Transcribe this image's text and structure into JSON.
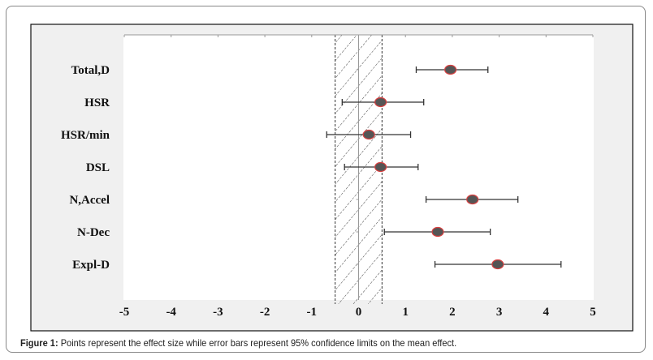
{
  "caption": {
    "label": "Figure 1:",
    "text": "Points represent the effect size while error bars represent 95% confidence limits on the mean effect."
  },
  "colors": {
    "point_fill": "#555555",
    "point_stroke": "#d94040",
    "error_bar": "#333333",
    "band_hatch": "#444444"
  },
  "chart_data": {
    "type": "forest",
    "title": "",
    "xlabel": "",
    "ylabel": "",
    "xlim": [
      -5,
      5
    ],
    "xticks": [
      -5,
      -4,
      -3,
      -2,
      -1,
      0,
      1,
      2,
      3,
      4,
      5
    ],
    "xtick_labels": [
      "-5",
      "-4",
      "-3",
      "-2",
      "-1",
      "0",
      "1",
      "2",
      "3",
      "4",
      "5"
    ],
    "trivial_band": [
      -0.5,
      0.5
    ],
    "categories": [
      "Total,D",
      "HSR",
      "HSR/min",
      "DSL",
      "N,Accel",
      "N-Dec",
      "Expl-D"
    ],
    "values": [
      1.96,
      0.47,
      0.22,
      0.47,
      2.43,
      1.69,
      2.97
    ],
    "ci_lower": [
      1.23,
      -0.35,
      -0.68,
      -0.3,
      1.44,
      0.55,
      1.63
    ],
    "ci_upper": [
      2.76,
      1.39,
      1.11,
      1.27,
      3.4,
      2.81,
      4.32
    ],
    "grid": false,
    "legend": "none"
  }
}
